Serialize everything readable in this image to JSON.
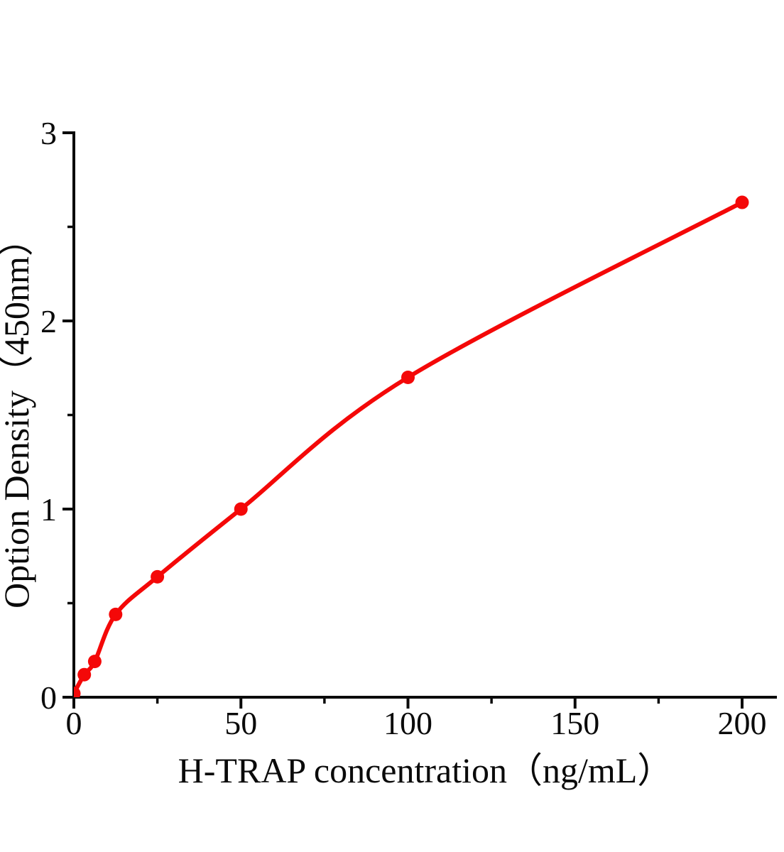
{
  "page": {
    "background": "#ffffff",
    "text_color": "#0a0a0a"
  },
  "chart_data": {
    "type": "scatter",
    "title": "",
    "xlabel": "H-TRAP concentration（ng/mL）",
    "ylabel": "Option Density（450nm）",
    "legend": "none",
    "grid": false,
    "xlim": [
      0,
      210
    ],
    "ylim": [
      0,
      3
    ],
    "x_major_ticks": [
      0,
      50,
      100,
      150,
      200
    ],
    "x_minor_ticks": [
      25,
      75,
      125,
      175
    ],
    "y_major_ticks": [
      0,
      1,
      2,
      3
    ],
    "y_minor_ticks": [
      0.5,
      1.5,
      2.5
    ],
    "axis_color": "#0a0a0a",
    "series": [
      {
        "marker": "circle",
        "color": "#f40808",
        "line": "smooth-fit",
        "x": [
          0,
          3.125,
          6.25,
          12.5,
          25,
          50,
          100,
          200
        ],
        "y": [
          0.02,
          0.12,
          0.19,
          0.44,
          0.64,
          1.0,
          1.7,
          2.63
        ]
      }
    ]
  }
}
